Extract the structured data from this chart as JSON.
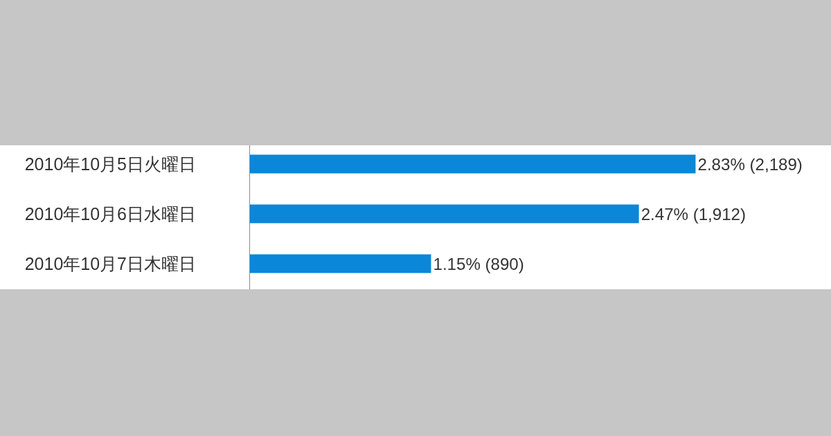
{
  "chart_data": {
    "type": "bar",
    "orientation": "horizontal",
    "categories": [
      "2010年10月5日火曜日",
      "2010年10月6日水曜日",
      "2010年10月7日木曜日"
    ],
    "values": [
      2.83,
      2.47,
      1.15
    ],
    "value_labels": [
      "2.83% (2,189)",
      "2.47% (1,912)",
      "1.15% (890)"
    ],
    "color": "#0b87d9",
    "xlim": [
      0,
      3.69
    ],
    "tick_labels": "y"
  }
}
